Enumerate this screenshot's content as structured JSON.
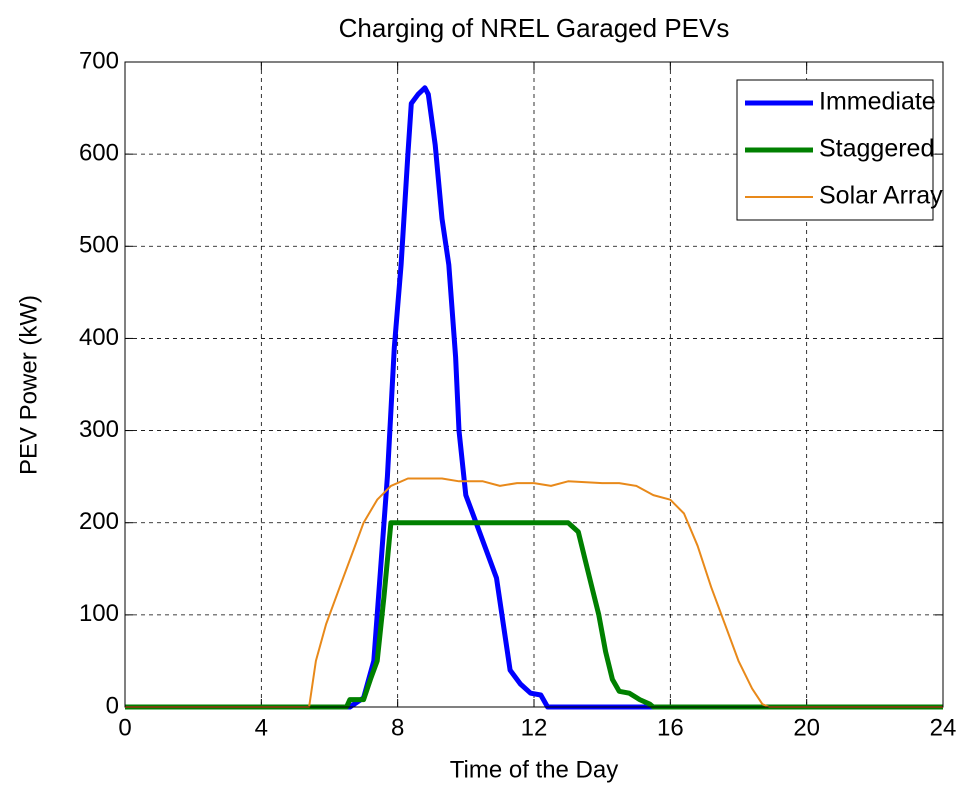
{
  "chart_data": {
    "type": "line",
    "title": "Charging of NREL Garaged PEVs",
    "xlabel": "Time of the Day",
    "ylabel": "PEV Power (kW)",
    "xlim": [
      0,
      24
    ],
    "ylim": [
      0,
      700
    ],
    "xticks": [
      0,
      4,
      8,
      12,
      16,
      20,
      24
    ],
    "yticks": [
      0,
      100,
      200,
      300,
      400,
      500,
      600,
      700
    ],
    "grid": true,
    "legend": "upper right",
    "series": [
      {
        "name": "Immediate",
        "color": "#0000ff",
        "width": 5,
        "x": [
          0,
          6.6,
          7.0,
          7.3,
          7.5,
          7.7,
          7.9,
          8.1,
          8.3,
          8.4,
          8.6,
          8.8,
          8.9,
          9.1,
          9.3,
          9.5,
          9.7,
          9.8,
          10.0,
          10.3,
          10.6,
          10.9,
          11.1,
          11.3,
          11.6,
          11.9,
          12.2,
          12.4,
          24
        ],
        "values": [
          0,
          0,
          10,
          50,
          150,
          250,
          390,
          480,
          600,
          655,
          665,
          672,
          665,
          610,
          530,
          480,
          380,
          300,
          230,
          200,
          170,
          140,
          90,
          40,
          25,
          15,
          13,
          0,
          0
        ]
      },
      {
        "name": "Staggered",
        "color": "#008000",
        "width": 5,
        "x": [
          0,
          6.5,
          6.6,
          7.0,
          7.2,
          7.4,
          7.6,
          7.8,
          13.0,
          13.3,
          13.5,
          13.7,
          13.9,
          14.1,
          14.3,
          14.5,
          14.8,
          15.1,
          15.4,
          15.5,
          24
        ],
        "values": [
          0,
          0,
          8,
          8,
          30,
          50,
          120,
          200,
          200,
          190,
          160,
          130,
          100,
          60,
          30,
          17,
          15,
          8,
          3,
          0,
          0
        ]
      },
      {
        "name": "Solar Array",
        "color": "#e8891a",
        "width": 2,
        "x": [
          0,
          5.4,
          5.6,
          5.9,
          6.3,
          6.7,
          7.0,
          7.4,
          7.8,
          8.3,
          8.8,
          9.3,
          9.8,
          10.5,
          11.0,
          11.5,
          12.0,
          12.5,
          13.0,
          14.0,
          14.5,
          15.0,
          15.5,
          16.0,
          16.4,
          16.8,
          17.2,
          17.6,
          18.0,
          18.4,
          18.7,
          18.9,
          24
        ],
        "values": [
          0,
          0,
          50,
          90,
          130,
          170,
          200,
          225,
          240,
          248,
          248,
          248,
          245,
          245,
          240,
          243,
          243,
          240,
          245,
          243,
          243,
          240,
          230,
          225,
          210,
          175,
          130,
          90,
          50,
          20,
          3,
          0,
          0
        ]
      }
    ]
  }
}
